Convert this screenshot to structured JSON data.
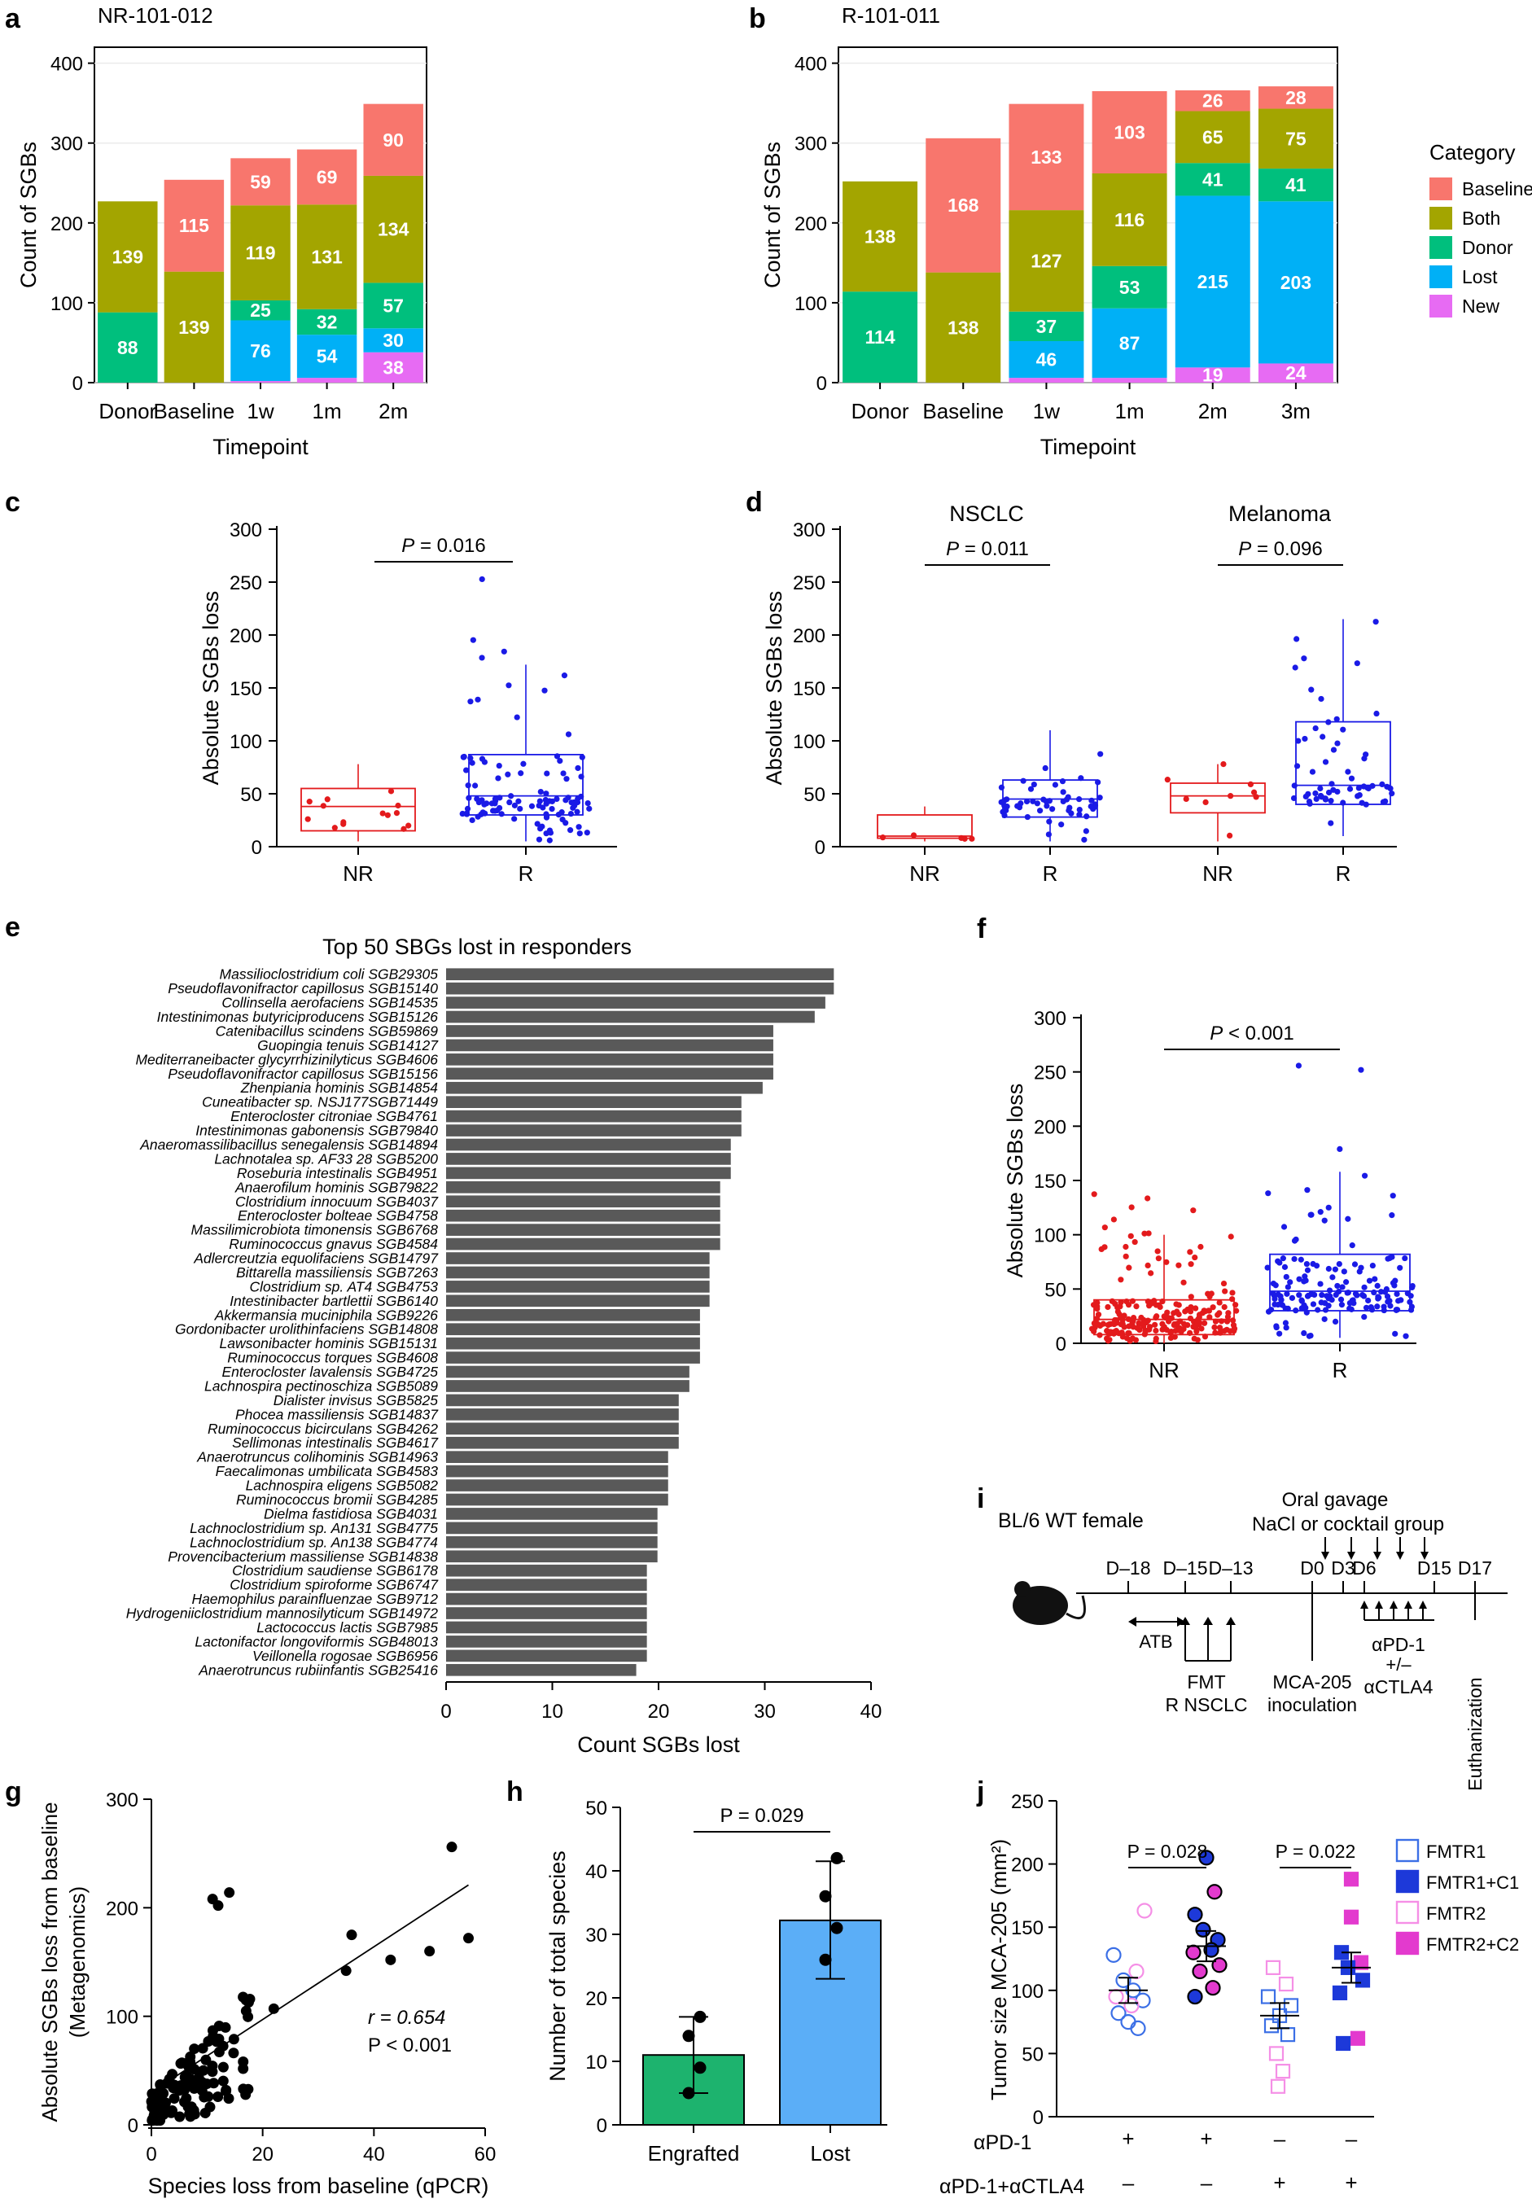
{
  "colors": {
    "baseline": "#F8766D",
    "both": "#A3A500",
    "donor": "#00BF7D",
    "lost": "#00B0F6",
    "new": "#E76BF3",
    "nr": "#E31A1C",
    "r": "#1A1AE6",
    "bar_e": "#595959",
    "engrafted": "#1DB36E",
    "lost_h": "#5BAEF7",
    "fmtr1": "#3B6FE6",
    "fmtr2": "#F58FE6",
    "fmtr1c1": "#1D39D9",
    "fmtr2c2": "#E33ACE"
  },
  "chart_data": [
    {
      "panel": "a",
      "type": "bar",
      "stacked": true,
      "title": "NR-101-012",
      "xlabel": "Timepoint",
      "ylabel": "Count of SGBs",
      "ylim": [
        0,
        420
      ],
      "yticks": [
        0,
        100,
        200,
        300,
        400
      ],
      "categories": [
        "Donor",
        "Baseline",
        "1w",
        "1m",
        "2m"
      ],
      "series": [
        {
          "name": "New",
          "values": [
            0,
            0,
            2,
            6,
            38
          ]
        },
        {
          "name": "Lost",
          "values": [
            0,
            0,
            76,
            54,
            30
          ]
        },
        {
          "name": "Donor",
          "values": [
            88,
            0,
            25,
            32,
            57
          ]
        },
        {
          "name": "Both",
          "values": [
            139,
            139,
            119,
            131,
            134
          ]
        },
        {
          "name": "Baseline",
          "values": [
            0,
            115,
            59,
            69,
            90
          ]
        }
      ],
      "labels": [
        [
          "",
          "",
          "",
          "",
          "38"
        ],
        [
          "",
          "",
          "76",
          "54",
          "30"
        ],
        [
          "88",
          "",
          "25",
          "32",
          "57"
        ],
        [
          "139",
          "139",
          "119",
          "131",
          "134"
        ],
        [
          "",
          "115",
          "59",
          "69",
          "90"
        ]
      ]
    },
    {
      "panel": "b",
      "type": "bar",
      "stacked": true,
      "title": "R-101-011",
      "xlabel": "Timepoint",
      "ylabel": "Count of SGBs",
      "ylim": [
        0,
        420
      ],
      "yticks": [
        0,
        100,
        200,
        300,
        400
      ],
      "categories": [
        "Donor",
        "Baseline",
        "1w",
        "1m",
        "2m",
        "3m"
      ],
      "legend_title": "Category",
      "legend": [
        "Baseline",
        "Both",
        "Donor",
        "Lost",
        "New"
      ],
      "series": [
        {
          "name": "New",
          "values": [
            0,
            0,
            6,
            6,
            19,
            24
          ]
        },
        {
          "name": "Lost",
          "values": [
            0,
            0,
            46,
            87,
            215,
            203
          ]
        },
        {
          "name": "Donor",
          "values": [
            114,
            0,
            37,
            53,
            41,
            41
          ]
        },
        {
          "name": "Both",
          "values": [
            138,
            138,
            127,
            116,
            65,
            75
          ]
        },
        {
          "name": "Baseline",
          "values": [
            0,
            168,
            133,
            103,
            26,
            28
          ]
        }
      ],
      "labels": [
        [
          "",
          "",
          "",
          "",
          "19",
          "24"
        ],
        [
          "",
          "",
          "46",
          "87",
          "215",
          "203"
        ],
        [
          "114",
          "",
          "37",
          "53",
          "41",
          "41"
        ],
        [
          "138",
          "138",
          "127",
          "116",
          "65",
          "75"
        ],
        [
          "",
          "168",
          "133",
          "103",
          "26",
          "28"
        ]
      ]
    },
    {
      "panel": "c",
      "type": "box",
      "ylabel": "Absolute SGBs loss",
      "ylim": [
        0,
        300
      ],
      "yticks": [
        0,
        50,
        100,
        150,
        200,
        250,
        300
      ],
      "categories": [
        "NR",
        "R"
      ],
      "groups": [
        {
          "name": "NR",
          "q1": 15,
          "median": 38,
          "q3": 55,
          "lo": 5,
          "hi": 78,
          "n": 14,
          "seed": 11
        },
        {
          "name": "R",
          "q1": 30,
          "median": 48,
          "q3": 87,
          "lo": 5,
          "hi": 172,
          "n": 110,
          "seed": 23,
          "max": 258
        }
      ],
      "pvalue": "0.016",
      "p_prefix": "P = "
    },
    {
      "panel": "d",
      "type": "box",
      "ylabel": "Absolute SGBs loss",
      "ylim": [
        0,
        300
      ],
      "yticks": [
        0,
        50,
        100,
        150,
        200,
        250,
        300
      ],
      "facets": [
        "NSCLC",
        "Melanoma"
      ],
      "categories": [
        "NR",
        "R",
        "NR",
        "R"
      ],
      "groups": [
        {
          "name": "NR",
          "q1": 8,
          "median": 10,
          "q3": 30,
          "lo": 5,
          "hi": 38,
          "n": 5,
          "seed": 31
        },
        {
          "name": "R",
          "q1": 28,
          "median": 45,
          "q3": 63,
          "lo": 5,
          "hi": 110,
          "n": 55,
          "seed": 37,
          "max": 258
        },
        {
          "name": "NR",
          "q1": 32,
          "median": 48,
          "q3": 60,
          "lo": 5,
          "hi": 78,
          "n": 9,
          "seed": 41
        },
        {
          "name": "R",
          "q1": 40,
          "median": 58,
          "q3": 118,
          "lo": 10,
          "hi": 215,
          "n": 60,
          "seed": 47
        }
      ],
      "pvalues": [
        "0.011",
        "0.096"
      ],
      "p_prefix": "P = "
    },
    {
      "panel": "e",
      "type": "bar",
      "orientation": "horizontal",
      "title": "Top 50 SBGs lost in responders",
      "xlabel": "Count SGBs lost",
      "xlim": [
        0,
        40
      ],
      "xticks": [
        0,
        10,
        20,
        30,
        40
      ],
      "categories": [
        "Massilioclostridium coli SGB29305",
        "Pseudoflavonifractor capillosus SGB15140",
        "Collinsella aerofaciens SGB14535",
        "Intestinimonas butyriciproducens SGB15126",
        "Catenibacillus scindens SGB59869",
        "Guopingia tenuis SGB14127",
        "Mediterraneibacter glycyrrhizinilyticus SGB4606",
        "Pseudoflavonifractor capillosus SGB15156",
        "Zhenpiania hominis SGB14854",
        "Cuneatibacter sp. NSJ177SGB71449",
        "Enterocloster citroniae SGB4761",
        "Intestinimonas gabonensis SGB79840",
        "Anaeromassilibacillus senegalensis SGB14894",
        "Lachnotalea sp. AF33 28 SGB5200",
        "Roseburia intestinalis SGB4951",
        "Anaerofilum hominis SGB79822",
        "Clostridium innocuum SGB4037",
        "Enterocloster bolteae SGB4758",
        "Massilimicrobiota timonensis SGB6768",
        "Ruminococcus gnavus SGB4584",
        "Adlercreutzia equolifaciens SGB14797",
        "Bittarella massiliensis SGB7263",
        "Clostridium sp. AT4 SGB4753",
        "Intestinibacter bartlettii SGB6140",
        "Akkermansia muciniphila SGB9226",
        "Gordonibacter urolithinfaciens SGB14808",
        "Lawsonibacter hominis SGB15131",
        "Ruminococcus torques SGB4608",
        "Enterocloster lavalensis SGB4725",
        "Lachnospira pectinoschiza SGB5089",
        "Dialister invisus SGB5825",
        "Phocea massiliensis SGB14837",
        "Ruminococcus bicirculans SGB4262",
        "Sellimonas intestinalis SGB4617",
        "Anaerotruncus colihominis SGB14963",
        "Faecalimonas umbilicata SGB4583",
        "Lachnospira eligens SGB5082",
        "Ruminococcus bromii SGB4285",
        "Dielma fastidiosa SGB4031",
        "Lachnoclostridium sp. An131 SGB4775",
        "Lachnoclostridium sp. An138 SGB4774",
        "Provencibacterium massiliense SGB14838",
        "Clostridium saudiense SGB6178",
        "Clostridium spiroforme SGB6747",
        "Haemophilus parainfluenzae SGB9712",
        "Hydrogeniiclostridium mannosilyticum SGB14972",
        "Lactococcus lactis SGB7985",
        "Lactonifactor longoviformis SGB48013",
        "Veillonella rogosae SGB6956",
        "Anaerotruncus rubiinfantis SGB25416"
      ],
      "values": [
        36.5,
        36.5,
        35.7,
        34.7,
        30.8,
        30.8,
        30.8,
        30.8,
        29.8,
        27.8,
        27.8,
        27.8,
        26.8,
        26.8,
        26.8,
        25.8,
        25.8,
        25.8,
        25.8,
        25.8,
        24.8,
        24.8,
        24.8,
        24.8,
        23.9,
        23.9,
        23.9,
        23.9,
        22.9,
        22.9,
        21.9,
        21.9,
        21.9,
        21.9,
        20.9,
        20.9,
        20.9,
        20.9,
        19.9,
        19.9,
        19.9,
        19.9,
        18.9,
        18.9,
        18.9,
        18.9,
        18.9,
        18.9,
        18.9,
        17.9
      ]
    },
    {
      "panel": "f",
      "type": "box",
      "ylabel": "Absolute SGBs loss",
      "ylim": [
        0,
        300
      ],
      "yticks": [
        0,
        50,
        100,
        150,
        200,
        250,
        300
      ],
      "categories": [
        "NR",
        "R"
      ],
      "groups": [
        {
          "name": "NR",
          "q1": 8,
          "median": 22,
          "q3": 40,
          "lo": 0,
          "hi": 100,
          "n": 230,
          "seed": 53,
          "max": 140
        },
        {
          "name": "R",
          "q1": 30,
          "median": 48,
          "q3": 82,
          "lo": 5,
          "hi": 158,
          "n": 165,
          "seed": 59,
          "max": 258
        }
      ],
      "pvalue": "< 0.001",
      "p_prefix": "P "
    },
    {
      "panel": "g",
      "type": "scatter",
      "xlabel": "Species loss from baseline (qPCR)",
      "ylabel_lines": [
        "Absolute SGBs loss from baseline",
        "(Metagenomics)"
      ],
      "xlim": [
        0,
        60
      ],
      "ylim": [
        0,
        300
      ],
      "xticks": [
        0,
        20,
        40,
        60
      ],
      "yticks": [
        0,
        100,
        200,
        300
      ],
      "fit": {
        "slope": 3.0,
        "intercept": 50
      },
      "highlight_points": [
        [
          54,
          256
        ],
        [
          57,
          172
        ],
        [
          50,
          160
        ],
        [
          43,
          152
        ],
        [
          36,
          175
        ],
        [
          35,
          142
        ],
        [
          22,
          107
        ],
        [
          14,
          214
        ],
        [
          12,
          202
        ],
        [
          11,
          208
        ]
      ],
      "r_label": "r = 0.654",
      "p_label": "P < 0.001"
    },
    {
      "panel": "h",
      "type": "bar",
      "ylabel": "Number of total species",
      "ylim": [
        0,
        50
      ],
      "yticks": [
        0,
        10,
        20,
        30,
        40,
        50
      ],
      "categories": [
        "Engrafted",
        "Lost"
      ],
      "values": [
        11,
        32.2
      ],
      "errors": [
        [
          5,
          17
        ],
        [
          23,
          41.5
        ]
      ],
      "points": [
        [
          5,
          9,
          14,
          17
        ],
        [
          26,
          31,
          36,
          42
        ]
      ],
      "pvalue": "P = 0.029"
    },
    {
      "panel": "i",
      "type": "diagram",
      "subject": "BL/6 WT female",
      "days": [
        "D–18",
        "D–15",
        "D–13",
        "D0",
        "D3",
        "D6",
        "D15",
        "D17"
      ],
      "gavage_lines": [
        "Oral gavage",
        "NaCl or cocktail group"
      ],
      "atb": "ATB",
      "fmt_lines": [
        "FMT",
        "R NSCLC"
      ],
      "inoculation_lines": [
        "MCA-205",
        "inoculation"
      ],
      "treatment_lines": [
        "αPD-1",
        "+/–",
        "αCTLA4"
      ],
      "euthanization": "Euthanization"
    },
    {
      "panel": "j",
      "type": "scatter",
      "ylabel": "Tumor size MCA-205 (mm²)",
      "ylim": [
        0,
        250
      ],
      "yticks": [
        0,
        50,
        100,
        150,
        200,
        250
      ],
      "legend": [
        "FMTR1",
        "FMTR1+C1",
        "FMTR2",
        "FMTR2+C2"
      ],
      "groups": [
        {
          "mean": 100,
          "sem": 10,
          "points": [
            [
              -18,
              128,
              "c1"
            ],
            [
              -6,
              108,
              "c1"
            ],
            [
              6,
              100,
              "c1"
            ],
            [
              18,
              92,
              "c1"
            ],
            [
              -12,
              82,
              "c1"
            ],
            [
              0,
              75,
              "c1"
            ],
            [
              12,
              70,
              "c1"
            ],
            [
              20,
              163,
              "c2"
            ],
            [
              10,
              115,
              "c2"
            ],
            [
              -15,
              95,
              "c2"
            ],
            [
              4,
              88,
              "c2"
            ]
          ]
        },
        {
          "mean": 135,
          "sem": 12,
          "points": [
            [
              0,
              205,
              "f1"
            ],
            [
              10,
              178,
              "f2"
            ],
            [
              -14,
              160,
              "f1"
            ],
            [
              -4,
              148,
              "f1"
            ],
            [
              14,
              140,
              "f1"
            ],
            [
              -16,
              130,
              "f2"
            ],
            [
              6,
              132,
              "f1"
            ],
            [
              16,
              120,
              "f2"
            ],
            [
              -8,
              115,
              "f2"
            ],
            [
              8,
              102,
              "f2"
            ],
            [
              -14,
              95,
              "f1"
            ]
          ]
        },
        {
          "mean": 80,
          "sem": 10,
          "points": [
            [
              -8,
              118,
              "s2"
            ],
            [
              8,
              105,
              "s2"
            ],
            [
              -14,
              95,
              "s1"
            ],
            [
              14,
              88,
              "s1"
            ],
            [
              0,
              80,
              "s1"
            ],
            [
              -10,
              72,
              "s1"
            ],
            [
              10,
              65,
              "s1"
            ],
            [
              -4,
              50,
              "s2"
            ],
            [
              4,
              36,
              "s2"
            ],
            [
              -2,
              24,
              "s2"
            ]
          ]
        },
        {
          "mean": 118,
          "sem": 12,
          "points": [
            [
              0,
              188,
              "q2"
            ],
            [
              0,
              158,
              "q2"
            ],
            [
              -12,
              130,
              "q1"
            ],
            [
              12,
              122,
              "q2"
            ],
            [
              -4,
              118,
              "q1"
            ],
            [
              14,
              108,
              "q1"
            ],
            [
              -14,
              98,
              "q1"
            ],
            [
              8,
              62,
              "q2"
            ],
            [
              -10,
              58,
              "q1"
            ]
          ]
        }
      ],
      "pvalues": [
        "P = 0.028",
        "P = 0.022"
      ],
      "row1_label": "αPD-1",
      "row1": [
        "+",
        "+",
        "–",
        "–"
      ],
      "row2_label": "αPD-1+αCTLA4",
      "row2": [
        "–",
        "–",
        "+",
        "+"
      ]
    }
  ],
  "panel_letters": [
    "a",
    "b",
    "c",
    "d",
    "e",
    "f",
    "g",
    "h",
    "i",
    "j"
  ]
}
